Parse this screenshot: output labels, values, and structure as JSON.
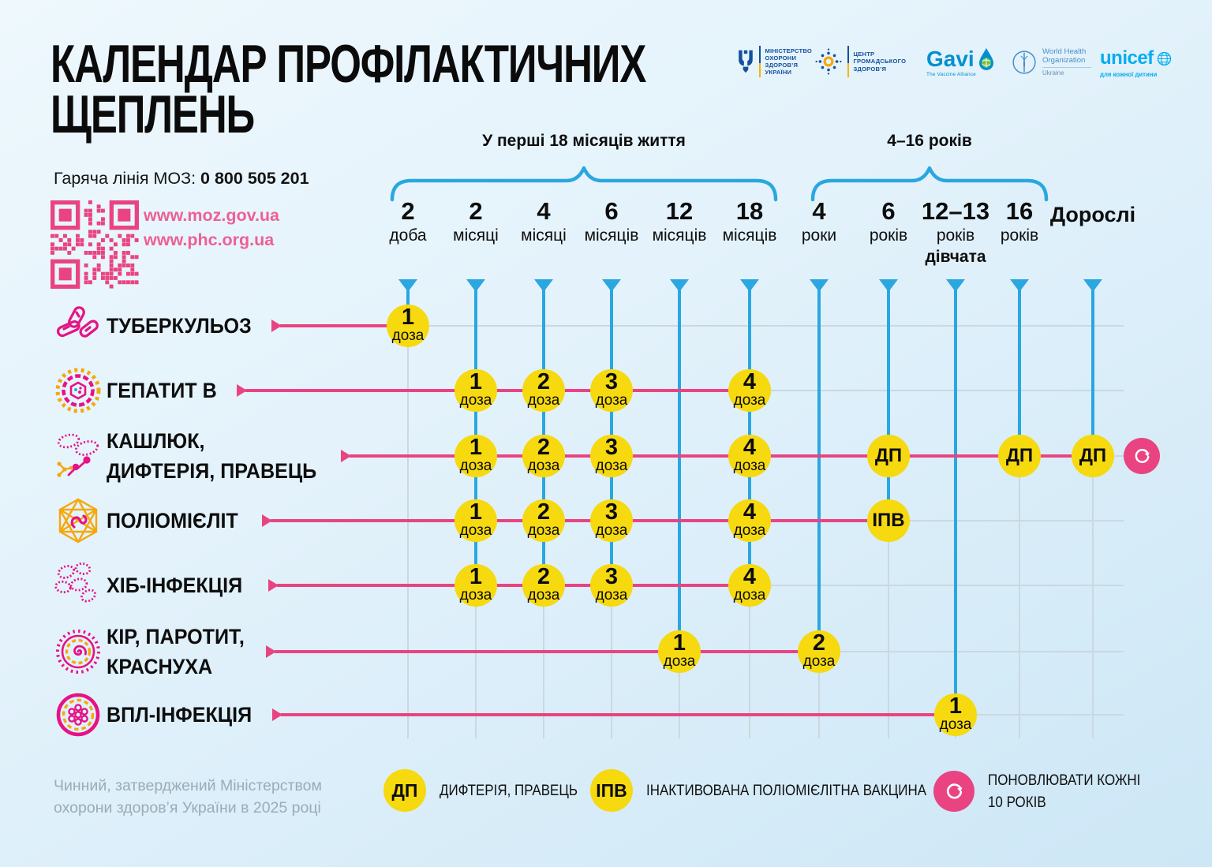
{
  "title": {
    "line1": "КАЛЕНДАР ПРОФІЛАКТИЧНИХ",
    "line2": "ЩЕПЛЕНЬ"
  },
  "hotline": {
    "label": "Гаряча лінія МОЗ:",
    "number": "0 800 505 201"
  },
  "websites": {
    "moz": "www.moz.gov.ua",
    "phc": "www.phc.org.ua"
  },
  "footer": {
    "line1": "Чинний, затверджений Міністерством",
    "line2": "охорони здоров’я України в 2025 році"
  },
  "logos": {
    "moh": {
      "lines": [
        "МІНІСТЕРСТВО",
        "ОХОРОНИ",
        "ЗДОРОВ’Я",
        "УКРАЇНИ"
      ]
    },
    "phc": {
      "lines": [
        "ЦЕНТР",
        "ГРОМАДСЬКОГО",
        "ЗДОРОВ’Я"
      ]
    },
    "gavi": {
      "name": "Gavi",
      "sub": "The Vaccine Alliance"
    },
    "who": {
      "lines": [
        "World Health",
        "Organization"
      ],
      "region": "Ukraine"
    },
    "unicef": {
      "name": "unicef",
      "tagline": "для кожної дитини"
    }
  },
  "brackets": [
    {
      "label": "У перші 18 місяців життя"
    },
    {
      "label": "4–16 років"
    }
  ],
  "columns": [
    {
      "value": "2",
      "unit": "доба"
    },
    {
      "value": "2",
      "unit": "місяці"
    },
    {
      "value": "4",
      "unit": "місяці"
    },
    {
      "value": "6",
      "unit": "місяців"
    },
    {
      "value": "12",
      "unit": "місяців"
    },
    {
      "value": "18",
      "unit": "місяців"
    },
    {
      "value": "4",
      "unit": "роки"
    },
    {
      "value": "6",
      "unit": "років"
    },
    {
      "value": "12–13",
      "unit": "років",
      "extra": "дівчата"
    },
    {
      "value": "16",
      "unit": "років"
    },
    {
      "value": "Дорослі",
      "unit": ""
    }
  ],
  "rows": [
    {
      "icon": "tuberculosis-icon",
      "label_lines": [
        "ТУБЕРКУЛЬОЗ"
      ],
      "markers": [
        {
          "col": 0,
          "label": "1",
          "sub": "доза"
        }
      ]
    },
    {
      "icon": "hepatitis-b-icon",
      "label_lines": [
        "ГЕПАТИТ В"
      ],
      "markers": [
        {
          "col": 1,
          "label": "1",
          "sub": "доза"
        },
        {
          "col": 2,
          "label": "2",
          "sub": "доза"
        },
        {
          "col": 3,
          "label": "3",
          "sub": "доза"
        },
        {
          "col": 5,
          "label": "4",
          "sub": "доза"
        }
      ]
    },
    {
      "icon": "pertussis-diphtheria-tetanus-icon",
      "label_lines": [
        "КАШЛЮК,",
        "ДИФТЕРІЯ, ПРАВЕЦЬ"
      ],
      "markers": [
        {
          "col": 1,
          "label": "1",
          "sub": "доза"
        },
        {
          "col": 2,
          "label": "2",
          "sub": "доза"
        },
        {
          "col": 3,
          "label": "3",
          "sub": "доза"
        },
        {
          "col": 5,
          "label": "4",
          "sub": "доза"
        },
        {
          "col": 7,
          "label": "ДП"
        },
        {
          "col": 9,
          "label": "ДП"
        },
        {
          "col": 10,
          "label": "ДП"
        }
      ],
      "refresh": true
    },
    {
      "icon": "polio-icon",
      "label_lines": [
        "ПОЛІОМІЄЛІТ"
      ],
      "markers": [
        {
          "col": 1,
          "label": "1",
          "sub": "доза"
        },
        {
          "col": 2,
          "label": "2",
          "sub": "доза"
        },
        {
          "col": 3,
          "label": "3",
          "sub": "доза"
        },
        {
          "col": 5,
          "label": "4",
          "sub": "доза"
        },
        {
          "col": 7,
          "label": "ІПВ"
        }
      ]
    },
    {
      "icon": "hib-icon",
      "label_lines": [
        "ХІБ-ІНФЕКЦІЯ"
      ],
      "markers": [
        {
          "col": 1,
          "label": "1",
          "sub": "доза"
        },
        {
          "col": 2,
          "label": "2",
          "sub": "доза"
        },
        {
          "col": 3,
          "label": "3",
          "sub": "доза"
        },
        {
          "col": 5,
          "label": "4",
          "sub": "доза"
        }
      ]
    },
    {
      "icon": "measles-mumps-rubella-icon",
      "label_lines": [
        "КІР, ПАРОТИТ,",
        "КРАСНУХА"
      ],
      "markers": [
        {
          "col": 4,
          "label": "1",
          "sub": "доза"
        },
        {
          "col": 6,
          "label": "2",
          "sub": "доза"
        }
      ]
    },
    {
      "icon": "hpv-icon",
      "label_lines": [
        "ВПЛ-ІНФЕКЦІЯ"
      ],
      "markers": [
        {
          "col": 8,
          "label": "1",
          "sub": "доза"
        }
      ]
    }
  ],
  "legend": [
    {
      "symbol": "ДП",
      "text": "ДИФТЕРІЯ, ПРАВЕЦЬ"
    },
    {
      "symbol": "ІПВ",
      "text": "ІНАКТИВОВАНА ПОЛІОМІЄЛІТНА ВАКЦИНА"
    },
    {
      "symbol": "refresh",
      "text_lines": [
        "ПОНОВЛЮВАТИ КОЖНІ",
        "10 РОКІВ"
      ]
    }
  ],
  "colors": {
    "pink": "#e94481",
    "yellow": "#f6d90f",
    "blue": "#2aa7e0"
  },
  "chart_data": {
    "type": "table",
    "title": "Календар профілактичних щеплень",
    "x_categories": [
      "2 доба",
      "2 місяці",
      "4 місяці",
      "6 місяців",
      "12 місяців",
      "18 місяців",
      "4 роки",
      "6 років",
      "12–13 років (дівчата)",
      "16 років",
      "Дорослі"
    ],
    "groups": [
      {
        "label": "У перші 18 місяців життя",
        "span": [
          "2 доба",
          "18 місяців"
        ]
      },
      {
        "label": "4–16 років",
        "span": [
          "4 роки",
          "16 років"
        ]
      }
    ],
    "series": [
      {
        "name": "Туберкульоз",
        "doses": {
          "2 доба": "1 доза"
        }
      },
      {
        "name": "Гепатит В",
        "doses": {
          "2 місяці": "1 доза",
          "4 місяці": "2 доза",
          "6 місяців": "3 доза",
          "18 місяців": "4 доза"
        }
      },
      {
        "name": "Кашлюк, дифтерія, правець",
        "doses": {
          "2 місяці": "1 доза",
          "4 місяці": "2 доза",
          "6 місяців": "3 доза",
          "18 місяців": "4 доза",
          "6 років": "ДП",
          "16 років": "ДП",
          "Дорослі": "ДП, поновлювати кожні 10 років"
        }
      },
      {
        "name": "Поліомієліт",
        "doses": {
          "2 місяці": "1 доза",
          "4 місяці": "2 доза",
          "6 місяців": "3 доза",
          "18 місяців": "4 доза",
          "6 років": "ІПВ"
        }
      },
      {
        "name": "Хіб-інфекція",
        "doses": {
          "2 місяці": "1 доза",
          "4 місяці": "2 доза",
          "6 місяців": "3 доза",
          "18 місяців": "4 доза"
        }
      },
      {
        "name": "Кір, паротит, краснуха",
        "doses": {
          "12 місяців": "1 доза",
          "4 роки": "2 доза"
        }
      },
      {
        "name": "ВПЛ-інфекція",
        "doses": {
          "12–13 років (дівчата)": "1 доза"
        }
      }
    ]
  }
}
